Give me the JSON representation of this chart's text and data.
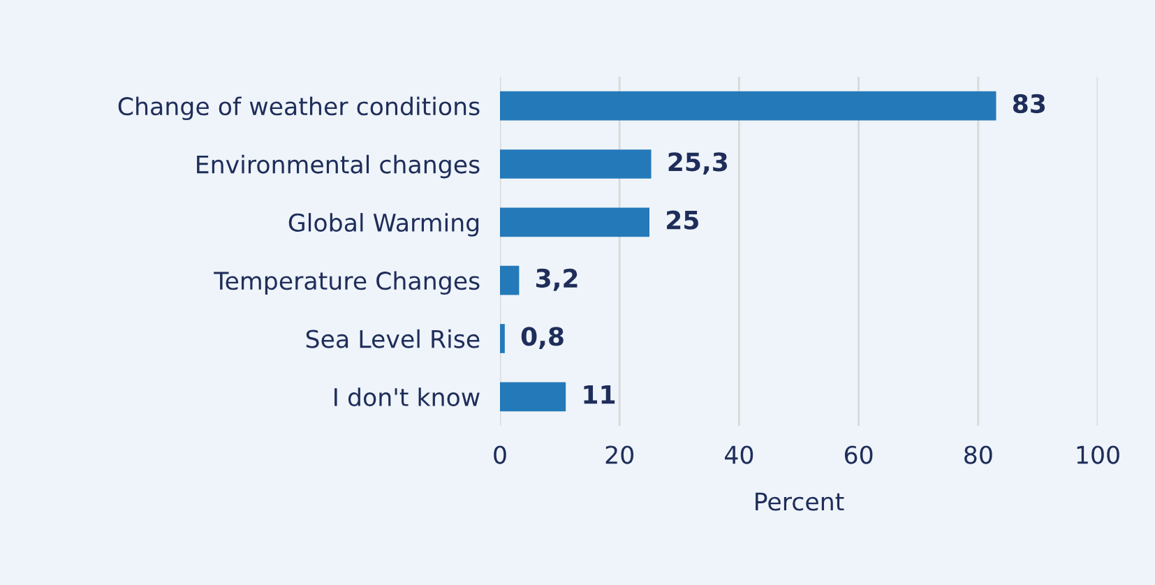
{
  "chart_data": {
    "type": "bar",
    "orientation": "horizontal",
    "xlabel": "Percent",
    "categories": [
      "Change of weather conditions",
      "Environmental changes",
      "Global Warming",
      "Temperature Changes",
      "Sea Level Rise",
      "I don't know"
    ],
    "values": [
      83,
      25.3,
      25,
      3.2,
      0.8,
      11
    ],
    "value_labels": [
      "83",
      "25,3",
      "25",
      "3,2",
      "0,8",
      "11"
    ],
    "color": "#2479b9",
    "xlim": [
      0,
      100
    ],
    "xticks": [
      0,
      20,
      40,
      60,
      80,
      100
    ],
    "grid": "x",
    "legend": false
  }
}
